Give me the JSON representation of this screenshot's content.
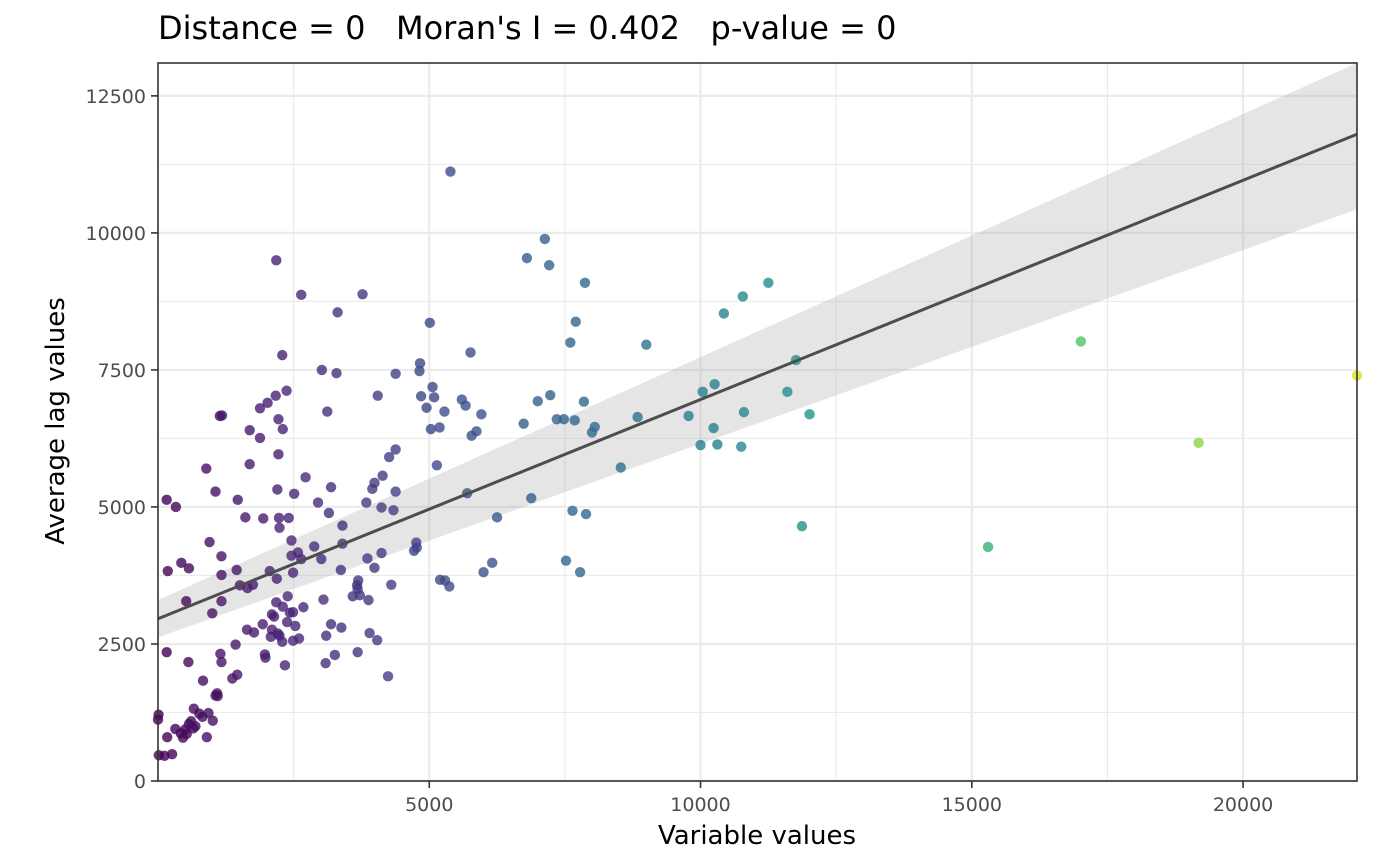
{
  "chart_data": {
    "type": "scatter",
    "title": "Distance = 0   Moran's I = 0.402   p-value = 0",
    "xlabel": "Variable values",
    "ylabel": "Average lag values",
    "xlim": [
      0,
      22100
    ],
    "ylim": [
      0,
      13100
    ],
    "x_ticks": [
      5000,
      10000,
      15000,
      20000
    ],
    "x_tick_labels": [
      "5000",
      "10000",
      "15000",
      "20000"
    ],
    "y_ticks": [
      0,
      2500,
      5000,
      7500,
      10000,
      12500
    ],
    "y_tick_labels": [
      "0",
      "2500",
      "5000",
      "7500",
      "10000",
      "12500"
    ],
    "grid": true,
    "color_scale": "viridis",
    "fit_line": {
      "intercept": 2960,
      "slope": 0.4,
      "ci_low_at_xmin": 2620,
      "ci_high_at_xmin": 3300,
      "ci_low_at_xmax": 10430,
      "ci_high_at_xmax": 13130
    },
    "points": [
      [
        0,
        1120
      ],
      [
        10,
        1210
      ],
      [
        15,
        470
      ],
      [
        120,
        460
      ],
      [
        170,
        800
      ],
      [
        260,
        490
      ],
      [
        320,
        950
      ],
      [
        420,
        870
      ],
      [
        460,
        790
      ],
      [
        500,
        940
      ],
      [
        530,
        860
      ],
      [
        570,
        1040
      ],
      [
        610,
        1090
      ],
      [
        650,
        960
      ],
      [
        690,
        1000
      ],
      [
        760,
        1230
      ],
      [
        820,
        1170
      ],
      [
        900,
        800
      ],
      [
        930,
        1240
      ],
      [
        1010,
        1100
      ],
      [
        1060,
        1560
      ],
      [
        1090,
        1600
      ],
      [
        1100,
        1550
      ],
      [
        180,
        3830
      ],
      [
        160,
        5130
      ],
      [
        330,
        5000
      ],
      [
        430,
        3980
      ],
      [
        520,
        3280
      ],
      [
        560,
        2170
      ],
      [
        570,
        3880
      ],
      [
        660,
        1320
      ],
      [
        160,
        2350
      ],
      [
        830,
        1830
      ],
      [
        890,
        5700
      ],
      [
        950,
        4360
      ],
      [
        1000,
        3060
      ],
      [
        1060,
        5280
      ],
      [
        1140,
        6660
      ],
      [
        1180,
        6670
      ],
      [
        1170,
        4100
      ],
      [
        1170,
        3280
      ],
      [
        1170,
        3760
      ],
      [
        1150,
        2320
      ],
      [
        1170,
        2170
      ],
      [
        1370,
        1870
      ],
      [
        1460,
        1940
      ],
      [
        1430,
        2490
      ],
      [
        1450,
        3850
      ],
      [
        1470,
        5130
      ],
      [
        1510,
        3570
      ],
      [
        1610,
        4810
      ],
      [
        1650,
        3520
      ],
      [
        1690,
        5780
      ],
      [
        1690,
        6400
      ],
      [
        1750,
        3580
      ],
      [
        1770,
        2710
      ],
      [
        1640,
        2760
      ],
      [
        1880,
        6800
      ],
      [
        1940,
        4790
      ],
      [
        1880,
        6260
      ],
      [
        1930,
        2860
      ],
      [
        1980,
        2250
      ],
      [
        1970,
        2310
      ],
      [
        2020,
        6900
      ],
      [
        2060,
        3830
      ],
      [
        2080,
        2630
      ],
      [
        2100,
        3040
      ],
      [
        2100,
        2760
      ],
      [
        2140,
        3000
      ],
      [
        2180,
        3260
      ],
      [
        2190,
        3690
      ],
      [
        2210,
        2690
      ],
      [
        2220,
        6600
      ],
      [
        2170,
        7030
      ],
      [
        2200,
        5320
      ],
      [
        2220,
        5960
      ],
      [
        2240,
        4620
      ],
      [
        2230,
        4800
      ],
      [
        2240,
        2650
      ],
      [
        2290,
        2540
      ],
      [
        2300,
        3180
      ],
      [
        2340,
        2110
      ],
      [
        2380,
        2900
      ],
      [
        2390,
        3370
      ],
      [
        2410,
        4800
      ],
      [
        2430,
        3070
      ],
      [
        2460,
        4390
      ],
      [
        2460,
        4110
      ],
      [
        2490,
        3080
      ],
      [
        2490,
        2560
      ],
      [
        2490,
        3800
      ],
      [
        2510,
        5240
      ],
      [
        2530,
        2830
      ],
      [
        2580,
        4170
      ],
      [
        2600,
        2600
      ],
      [
        2640,
        4050
      ],
      [
        2680,
        3170
      ],
      [
        2720,
        5540
      ],
      [
        2290,
        7770
      ],
      [
        2370,
        7120
      ],
      [
        2300,
        6420
      ],
      [
        2180,
        9500
      ],
      [
        2640,
        8870
      ],
      [
        2880,
        4280
      ],
      [
        2950,
        5080
      ],
      [
        3010,
        4050
      ],
      [
        3020,
        7500
      ],
      [
        3120,
        6740
      ],
      [
        3150,
        4890
      ],
      [
        3050,
        3310
      ],
      [
        3100,
        2650
      ],
      [
        3090,
        2150
      ],
      [
        3190,
        5360
      ],
      [
        3190,
        2860
      ],
      [
        3260,
        2300
      ],
      [
        3290,
        7440
      ],
      [
        3310,
        8550
      ],
      [
        3400,
        4660
      ],
      [
        3370,
        3850
      ],
      [
        3380,
        2800
      ],
      [
        3400,
        4330
      ],
      [
        3590,
        3370
      ],
      [
        3670,
        3570
      ],
      [
        3680,
        2350
      ],
      [
        3680,
        3500
      ],
      [
        3690,
        3660
      ],
      [
        3770,
        8880
      ],
      [
        3720,
        3390
      ],
      [
        3840,
        5080
      ],
      [
        3860,
        4060
      ],
      [
        3880,
        3300
      ],
      [
        3900,
        2700
      ],
      [
        3950,
        5330
      ],
      [
        3990,
        3890
      ],
      [
        3990,
        5440
      ],
      [
        4040,
        2570
      ],
      [
        4050,
        7030
      ],
      [
        4120,
        4990
      ],
      [
        4120,
        4160
      ],
      [
        4140,
        5570
      ],
      [
        4260,
        5910
      ],
      [
        4240,
        1910
      ],
      [
        4300,
        3580
      ],
      [
        4340,
        4940
      ],
      [
        4380,
        6050
      ],
      [
        4380,
        5280
      ],
      [
        4380,
        7430
      ],
      [
        4720,
        4200
      ],
      [
        4760,
        4350
      ],
      [
        4770,
        4260
      ],
      [
        4820,
        7480
      ],
      [
        4830,
        7620
      ],
      [
        4850,
        7020
      ],
      [
        4950,
        6810
      ],
      [
        5010,
        8360
      ],
      [
        5030,
        6420
      ],
      [
        5060,
        7190
      ],
      [
        5090,
        7000
      ],
      [
        5140,
        5760
      ],
      [
        5190,
        6450
      ],
      [
        5280,
        6740
      ],
      [
        5200,
        3670
      ],
      [
        5290,
        3660
      ],
      [
        5370,
        3550
      ],
      [
        5390,
        11120
      ],
      [
        5600,
        6960
      ],
      [
        5670,
        6850
      ],
      [
        5700,
        5250
      ],
      [
        5760,
        7820
      ],
      [
        5780,
        6300
      ],
      [
        5870,
        6380
      ],
      [
        5960,
        6690
      ],
      [
        6000,
        3810
      ],
      [
        6160,
        3980
      ],
      [
        6250,
        4810
      ],
      [
        6740,
        6520
      ],
      [
        6800,
        9540
      ],
      [
        6880,
        5160
      ],
      [
        7000,
        6930
      ],
      [
        7130,
        9890
      ],
      [
        7210,
        9410
      ],
      [
        7230,
        7040
      ],
      [
        7350,
        6600
      ],
      [
        7480,
        6600
      ],
      [
        7520,
        4020
      ],
      [
        7600,
        8000
      ],
      [
        7640,
        4930
      ],
      [
        7700,
        8380
      ],
      [
        7680,
        6580
      ],
      [
        7780,
        3810
      ],
      [
        7850,
        6920
      ],
      [
        7870,
        9090
      ],
      [
        7890,
        4870
      ],
      [
        8000,
        6360
      ],
      [
        8050,
        6460
      ],
      [
        8530,
        5720
      ],
      [
        8840,
        6640
      ],
      [
        9000,
        7960
      ],
      [
        9780,
        6660
      ],
      [
        10000,
        6130
      ],
      [
        10040,
        7100
      ],
      [
        10240,
        6440
      ],
      [
        10260,
        7240
      ],
      [
        10310,
        6140
      ],
      [
        10430,
        8530
      ],
      [
        10750,
        6100
      ],
      [
        10780,
        8840
      ],
      [
        10800,
        6730
      ],
      [
        11250,
        9090
      ],
      [
        11600,
        7100
      ],
      [
        11760,
        7680
      ],
      [
        11870,
        4650
      ],
      [
        12010,
        6690
      ],
      [
        15300,
        4270
      ],
      [
        17010,
        8020
      ],
      [
        19180,
        6170
      ],
      [
        22100,
        7400
      ]
    ]
  }
}
